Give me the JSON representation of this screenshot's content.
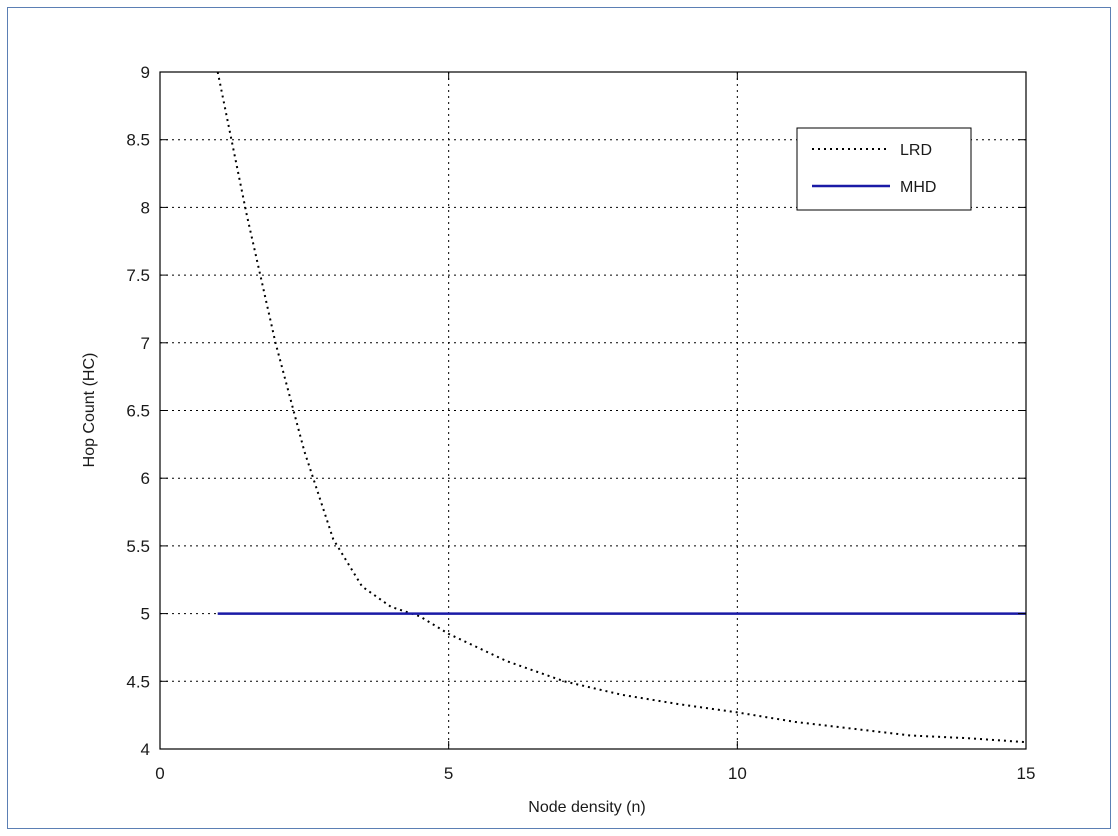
{
  "chart_data": {
    "type": "line",
    "title": "",
    "xlabel": "Node density (n)",
    "ylabel": "Hop Count (HC)",
    "xlim": [
      0,
      15
    ],
    "ylim": [
      4,
      9
    ],
    "x_ticks": [
      0,
      5,
      10,
      15
    ],
    "x_tick_labels": [
      "0",
      "5",
      "10",
      "15"
    ],
    "y_ticks": [
      4,
      4.5,
      5,
      5.5,
      6,
      6.5,
      7,
      7.5,
      8,
      8.5,
      9
    ],
    "y_tick_labels": [
      "4",
      "4.5",
      "5",
      "5.5",
      "6",
      "6.5",
      "7",
      "7.5",
      "8",
      "8.5",
      "9"
    ],
    "grid": true,
    "legend_position": "top-right",
    "series": [
      {
        "name": "LRD",
        "style": "dotted",
        "color": "#000000",
        "x": [
          1,
          1.5,
          2,
          2.5,
          3,
          3.5,
          4,
          4.5,
          5,
          6,
          7,
          8,
          9,
          10,
          11,
          12,
          13,
          14,
          15
        ],
        "y": [
          9.0,
          7.95,
          7.0,
          6.2,
          5.55,
          5.2,
          5.05,
          4.98,
          4.85,
          4.65,
          4.5,
          4.4,
          4.33,
          4.27,
          4.2,
          4.15,
          4.1,
          4.08,
          4.05
        ]
      },
      {
        "name": "MHD",
        "style": "solid",
        "color": "#1a1aa6",
        "x": [
          1,
          15
        ],
        "y": [
          5,
          5
        ]
      }
    ]
  }
}
